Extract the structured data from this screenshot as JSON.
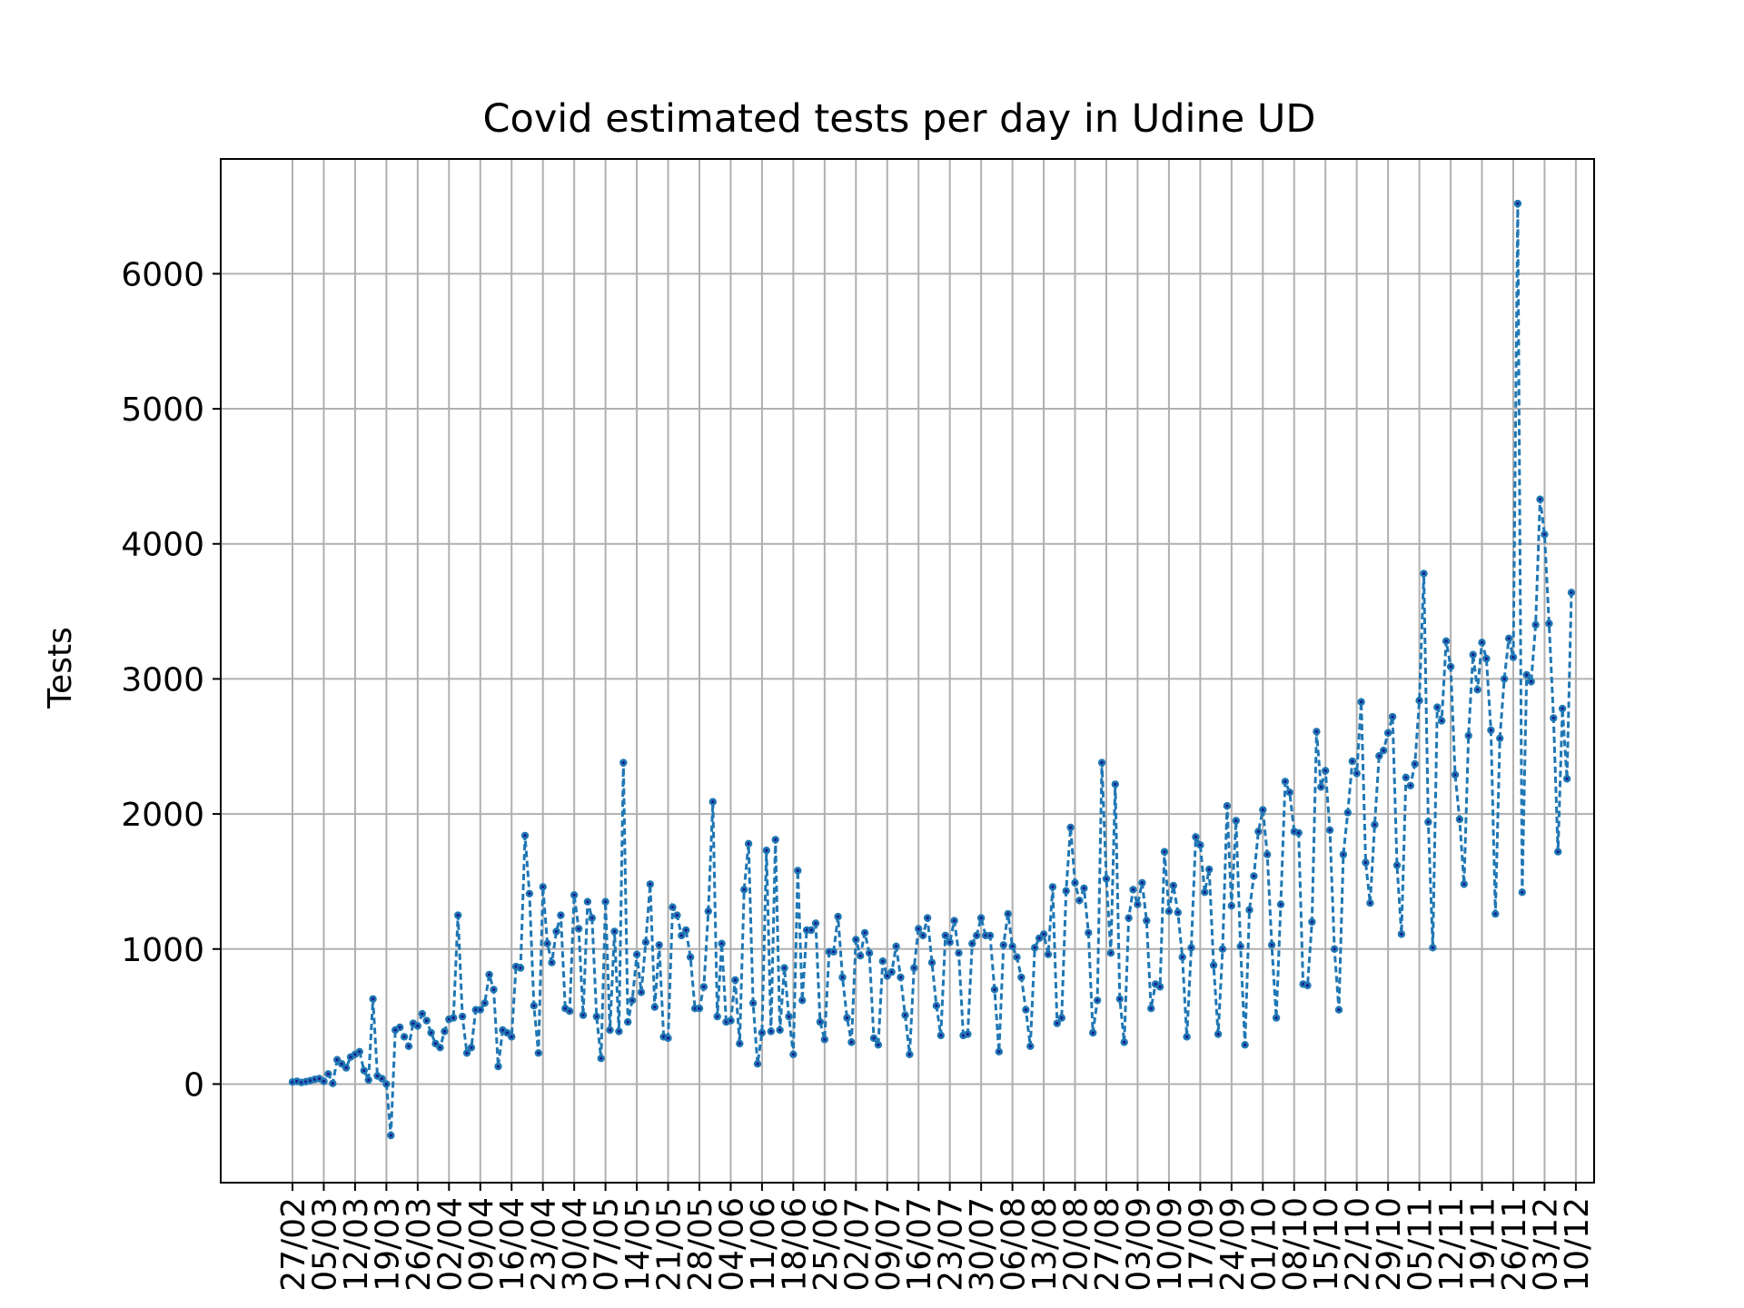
{
  "chart_data": {
    "type": "line",
    "title": "Covid estimated tests per day in Udine UD",
    "xlabel": "",
    "ylabel": "Tests",
    "ylim": [
      -730,
      6850
    ],
    "yticks": [
      0,
      1000,
      2000,
      3000,
      4000,
      5000,
      6000
    ],
    "grid": true,
    "line_style": "dashed",
    "marker": "dot",
    "colors": {
      "series": "#1f77b4",
      "marker_center": "#1a1a8c",
      "grid": "#b0b0b0",
      "axes": "#000000"
    },
    "x_start": "27/02",
    "xtick_labels": [
      "27/02",
      "05/03",
      "12/03",
      "19/03",
      "26/03",
      "02/04",
      "09/04",
      "16/04",
      "23/04",
      "30/04",
      "07/05",
      "14/05",
      "21/05",
      "28/05",
      "04/06",
      "11/06",
      "18/06",
      "25/06",
      "02/07",
      "09/07",
      "16/07",
      "23/07",
      "30/07",
      "06/08",
      "13/08",
      "20/08",
      "27/08",
      "03/09",
      "10/09",
      "17/09",
      "24/09",
      "01/10",
      "08/10",
      "15/10",
      "22/10",
      "29/10",
      "05/11",
      "12/11",
      "19/11",
      "26/11",
      "03/12",
      "10/12"
    ],
    "series": [
      {
        "values": [
          15,
          20,
          12,
          18,
          25,
          35,
          40,
          20,
          75,
          5,
          180,
          150,
          120,
          200,
          220,
          240,
          100,
          30,
          630,
          60,
          40,
          0,
          -380,
          400,
          420,
          350,
          280,
          450,
          430,
          520,
          470,
          380,
          300,
          270,
          390,
          480,
          490,
          1250,
          500,
          230,
          270,
          550,
          550,
          600,
          810,
          700,
          130,
          400,
          380,
          350,
          870,
          860,
          1840,
          1410,
          580,
          230,
          1460,
          1040,
          900,
          1130,
          1250,
          560,
          540,
          1400,
          1150,
          510,
          1350,
          1230,
          500,
          190,
          1350,
          400,
          1130,
          390,
          2380,
          460,
          620,
          960,
          680,
          1050,
          1480,
          570,
          1030,
          350,
          340,
          1310,
          1250,
          1100,
          1140,
          940,
          560,
          560,
          720,
          1280,
          2090,
          500,
          1040,
          460,
          470,
          770,
          300,
          1440,
          1780,
          600,
          150,
          380,
          1730,
          390,
          1810,
          400,
          860,
          500,
          220,
          1580,
          620,
          1140,
          1140,
          1190,
          460,
          330,
          980,
          980,
          1240,
          790,
          490,
          310,
          1070,
          950,
          1120,
          970,
          340,
          290,
          910,
          800,
          830,
          1020,
          790,
          510,
          220,
          860,
          1150,
          1100,
          1230,
          900,
          580,
          360,
          1100,
          1050,
          1210,
          970,
          360,
          370,
          1040,
          1100,
          1230,
          1100,
          1100,
          700,
          240,
          1030,
          1260,
          1020,
          940,
          790,
          550,
          280,
          1010,
          1080,
          1110,
          960,
          1460,
          450,
          490,
          1430,
          1900,
          1490,
          1360,
          1450,
          1120,
          380,
          620,
          2380,
          1520,
          970,
          2220,
          630,
          310,
          1230,
          1440,
          1330,
          1490,
          1210,
          560,
          740,
          720,
          1720,
          1280,
          1470,
          1270,
          940,
          350,
          1010,
          1830,
          1770,
          1420,
          1590,
          880,
          370,
          1000,
          2060,
          1320,
          1950,
          1020,
          290,
          1290,
          1540,
          1870,
          2030,
          1700,
          1030,
          490,
          1330,
          2240,
          2160,
          1870,
          1860,
          740,
          730,
          1200,
          2610,
          2200,
          2320,
          1880,
          1000,
          550,
          1700,
          2010,
          2390,
          2300,
          2830,
          1640,
          1340,
          1920,
          2430,
          2470,
          2600,
          2720,
          1620,
          1110,
          2270,
          2210,
          2370,
          2840,
          3780,
          1940,
          1010,
          2790,
          2690,
          3280,
          3090,
          2290,
          1960,
          1480,
          2580,
          3180,
          2920,
          3270,
          3150,
          2620,
          1260,
          2560,
          3000,
          3300,
          3160,
          6520,
          1420,
          3030,
          2980,
          3400,
          4330,
          4070,
          3410,
          2710,
          1720,
          2780,
          2260,
          3640
        ]
      }
    ]
  }
}
